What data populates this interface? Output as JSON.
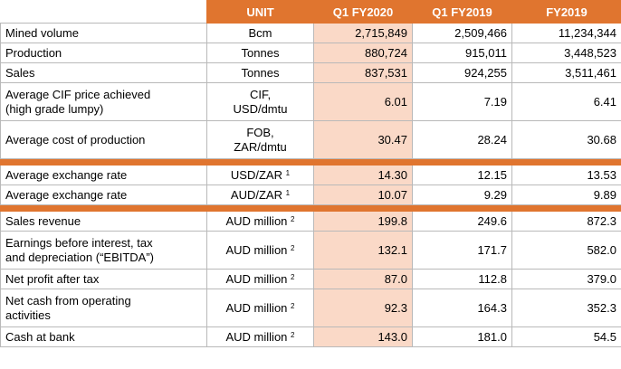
{
  "headers": [
    "UNIT",
    "Q1 FY2020",
    "Q1 FY2019",
    "FY2019"
  ],
  "groups": [
    [
      {
        "label": [
          "Mined volume"
        ],
        "unit": [
          "Bcm"
        ],
        "sup": "",
        "values": [
          "2,715,849",
          "2,509,466",
          "11,234,344"
        ],
        "tall": false
      },
      {
        "label": [
          "Production"
        ],
        "unit": [
          "Tonnes"
        ],
        "sup": "",
        "values": [
          "880,724",
          "915,011",
          "3,448,523"
        ],
        "tall": false
      },
      {
        "label": [
          "Sales"
        ],
        "unit": [
          "Tonnes"
        ],
        "sup": "",
        "values": [
          "837,531",
          "924,255",
          "3,511,461"
        ],
        "tall": false
      },
      {
        "label": [
          "Average CIF price achieved",
          "(high grade lumpy)"
        ],
        "unit": [
          "CIF,",
          "USD/dmtu"
        ],
        "sup": "",
        "values": [
          "6.01",
          "7.19",
          "6.41"
        ],
        "tall": true
      },
      {
        "label": [
          "Average cost of production"
        ],
        "unit": [
          "FOB,",
          "ZAR/dmtu"
        ],
        "sup": "",
        "values": [
          "30.47",
          "28.24",
          "30.68"
        ],
        "tall": true
      }
    ],
    [
      {
        "label": [
          "Average exchange rate"
        ],
        "unit": [
          "USD/ZAR"
        ],
        "sup": "1",
        "values": [
          "14.30",
          "12.15",
          "13.53"
        ],
        "tall": false
      },
      {
        "label": [
          "Average exchange rate"
        ],
        "unit": [
          "AUD/ZAR"
        ],
        "sup": "1",
        "values": [
          "10.07",
          "9.29",
          "9.89"
        ],
        "tall": false
      }
    ],
    [
      {
        "label": [
          "Sales revenue"
        ],
        "unit": [
          "AUD million"
        ],
        "sup": "2",
        "values": [
          "199.8",
          "249.6",
          "872.3"
        ],
        "tall": false
      },
      {
        "label": [
          "Earnings before interest, tax",
          "and depreciation (“EBITDA”)"
        ],
        "unit": [
          "AUD million"
        ],
        "sup": "2",
        "values": [
          "132.1",
          "171.7",
          "582.0"
        ],
        "tall": true
      },
      {
        "label": [
          "Net profit after tax"
        ],
        "unit": [
          "AUD million"
        ],
        "sup": "2",
        "values": [
          "87.0",
          "112.8",
          "379.0"
        ],
        "tall": false
      },
      {
        "label": [
          "Net cash from operating",
          "activities"
        ],
        "unit": [
          "AUD million"
        ],
        "sup": "2",
        "values": [
          "92.3",
          "164.3",
          "352.3"
        ],
        "tall": true
      },
      {
        "label": [
          "Cash at bank"
        ],
        "unit": [
          "AUD million"
        ],
        "sup": "2",
        "values": [
          "143.0",
          "181.0",
          "54.5"
        ],
        "tall": false
      }
    ]
  ]
}
